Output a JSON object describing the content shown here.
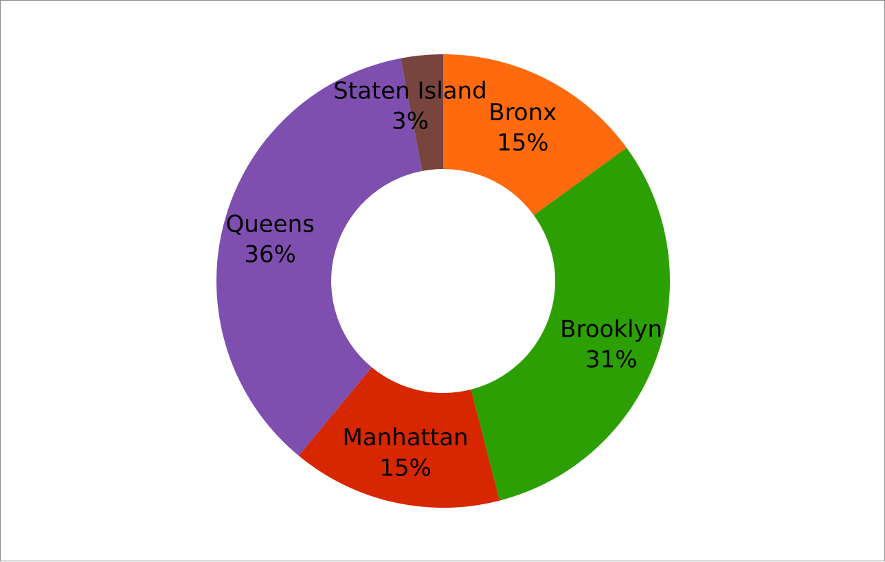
{
  "chart_data": {
    "type": "pie",
    "donut": true,
    "start_angle_deg": 0,
    "direction": "clockwise",
    "slices": [
      {
        "label": "Bronx",
        "value": 15,
        "display": "15%",
        "color": "#FF6A0E"
      },
      {
        "label": "Brooklyn",
        "value": 31,
        "display": "31%",
        "color": "#2CA002"
      },
      {
        "label": "Manhattan",
        "value": 15,
        "display": "15%",
        "color": "#D62700"
      },
      {
        "label": "Queens",
        "value": 36,
        "display": "36%",
        "color": "#7F4FB0"
      },
      {
        "label": "Staten Island",
        "value": 3,
        "display": "3%",
        "color": "#77453E"
      }
    ],
    "title": "",
    "legend": "none",
    "data_labels": "category and percent"
  }
}
